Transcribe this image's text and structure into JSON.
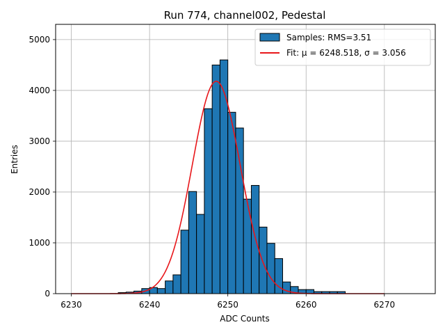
{
  "chart_data": {
    "type": "bar",
    "title": "Run 774, channel002, Pedestal",
    "xlabel": "ADC Counts",
    "ylabel": "Entries",
    "xlim": [
      6228,
      6276.5
    ],
    "ylim": [
      0,
      5300
    ],
    "xticks": [
      6230,
      6240,
      6250,
      6260,
      6270
    ],
    "yticks": [
      0,
      1000,
      2000,
      3000,
      4000,
      5000
    ],
    "grid": true,
    "legend_position": "top-right",
    "histogram": {
      "name": "Samples: RMS=3.51",
      "color": "#1f77b4",
      "bin_width": 1,
      "bins": [
        {
          "x": 6236,
          "count": 20
        },
        {
          "x": 6237,
          "count": 30
        },
        {
          "x": 6238,
          "count": 50
        },
        {
          "x": 6239,
          "count": 100
        },
        {
          "x": 6240,
          "count": 120
        },
        {
          "x": 6241,
          "count": 100
        },
        {
          "x": 6242,
          "count": 250
        },
        {
          "x": 6243,
          "count": 370
        },
        {
          "x": 6244,
          "count": 1250
        },
        {
          "x": 6245,
          "count": 2010
        },
        {
          "x": 6246,
          "count": 1560
        },
        {
          "x": 6247,
          "count": 3640
        },
        {
          "x": 6248,
          "count": 4500
        },
        {
          "x": 6249,
          "count": 4600
        },
        {
          "x": 6250,
          "count": 3570
        },
        {
          "x": 6251,
          "count": 3260
        },
        {
          "x": 6252,
          "count": 1860
        },
        {
          "x": 6253,
          "count": 2130
        },
        {
          "x": 6254,
          "count": 1310
        },
        {
          "x": 6255,
          "count": 990
        },
        {
          "x": 6256,
          "count": 690
        },
        {
          "x": 6257,
          "count": 230
        },
        {
          "x": 6258,
          "count": 140
        },
        {
          "x": 6259,
          "count": 80
        },
        {
          "x": 6260,
          "count": 80
        },
        {
          "x": 6261,
          "count": 40
        },
        {
          "x": 6262,
          "count": 40
        },
        {
          "x": 6263,
          "count": 40
        },
        {
          "x": 6264,
          "count": 40
        }
      ]
    },
    "fit": {
      "name": "Fit: μ = 6248.518, σ = 3.056",
      "color": "#e8161a",
      "mu": 6248.518,
      "sigma": 3.056,
      "peak": 4180,
      "x_range": [
        6230,
        6270
      ]
    }
  }
}
